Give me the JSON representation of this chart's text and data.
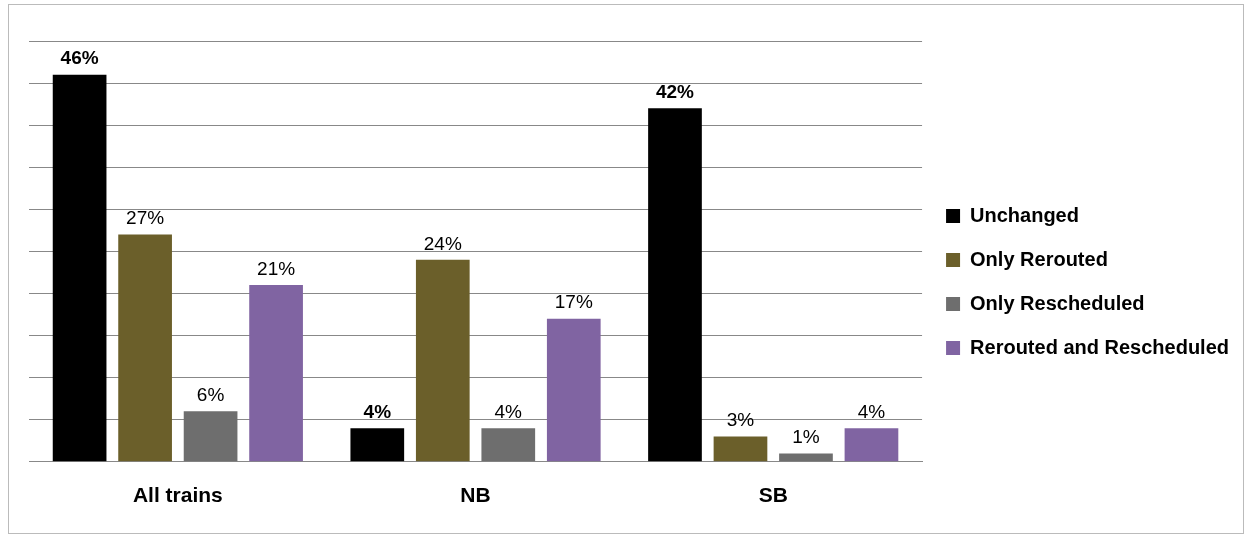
{
  "chart_data": {
    "type": "bar",
    "categories": [
      "All trains",
      "NB",
      "SB"
    ],
    "series": [
      {
        "name": "Unchanged",
        "color": "#000000",
        "values": [
          46,
          4,
          42
        ],
        "value_labels": [
          "46%",
          "4%",
          "42%"
        ]
      },
      {
        "name": "Only Rerouted",
        "color": "#6b5f2a",
        "values": [
          27,
          24,
          3
        ],
        "value_labels": [
          "27%",
          "24%",
          "3%"
        ]
      },
      {
        "name": "Only Rescheduled",
        "color": "#6e6e6e",
        "values": [
          6,
          4,
          1
        ],
        "value_labels": [
          "6%",
          "4%",
          "1%"
        ]
      },
      {
        "name": "Rerouted and Rescheduled",
        "color": "#8064a2",
        "values": [
          21,
          17,
          4
        ],
        "value_labels": [
          "21%",
          "17%",
          "4%"
        ]
      }
    ],
    "ylim": [
      0,
      50
    ],
    "yticks": [
      {
        "value": 0,
        "label": null
      },
      {
        "value": 5,
        "label": null
      },
      {
        "value": 10,
        "label": null
      },
      {
        "value": 15,
        "label": null
      },
      {
        "value": 20,
        "label": null
      },
      {
        "value": 25,
        "label": null
      },
      {
        "value": 30,
        "label": null
      },
      {
        "value": 35,
        "label": null
      },
      {
        "value": 40,
        "label": null
      },
      {
        "value": 45,
        "label": null
      },
      {
        "value": 50,
        "label": null
      }
    ],
    "grid": "y",
    "legend": "right",
    "tick_labels": "x"
  }
}
